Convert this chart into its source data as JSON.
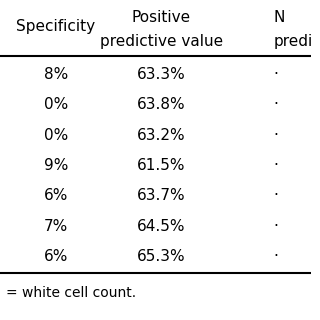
{
  "col1_header": "Specificity",
  "col2_header_line1": "Positive",
  "col2_header_line2": "predictive value",
  "col3_header_line1": "N",
  "col3_header_line2": "predi",
  "col1_partial": [
    "8%",
    "0%",
    "0%",
    "9%",
    "6%",
    "7%",
    "6%"
  ],
  "col2_values": [
    "63.3%",
    "63.8%",
    "63.2%",
    "61.5%",
    "63.7%",
    "64.5%",
    "65.3%"
  ],
  "col3_partial": [
    "·",
    "·",
    "·",
    "·",
    "·",
    "·",
    "·"
  ],
  "footnote": "= white cell count.",
  "bg_color": "#ffffff",
  "text_color": "#000000",
  "font_size": 11,
  "header_font_size": 11
}
